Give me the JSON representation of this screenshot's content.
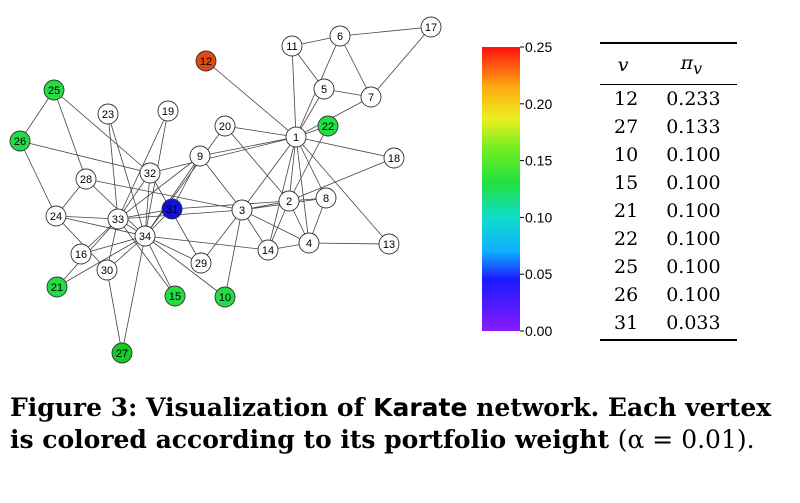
{
  "chart_data": {
    "type": "network",
    "nodes": [
      {
        "id": "1",
        "color": "#ffffff"
      },
      {
        "id": "2",
        "color": "#ffffff"
      },
      {
        "id": "3",
        "color": "#ffffff"
      },
      {
        "id": "4",
        "color": "#ffffff"
      },
      {
        "id": "5",
        "color": "#ffffff"
      },
      {
        "id": "6",
        "color": "#ffffff"
      },
      {
        "id": "7",
        "color": "#ffffff"
      },
      {
        "id": "8",
        "color": "#ffffff"
      },
      {
        "id": "9",
        "color": "#ffffff"
      },
      {
        "id": "10",
        "color": "#22dd44"
      },
      {
        "id": "11",
        "color": "#ffffff"
      },
      {
        "id": "12",
        "color": "#e04a10"
      },
      {
        "id": "13",
        "color": "#ffffff"
      },
      {
        "id": "14",
        "color": "#ffffff"
      },
      {
        "id": "15",
        "color": "#22dd44"
      },
      {
        "id": "16",
        "color": "#ffffff"
      },
      {
        "id": "17",
        "color": "#ffffff"
      },
      {
        "id": "18",
        "color": "#ffffff"
      },
      {
        "id": "19",
        "color": "#ffffff"
      },
      {
        "id": "20",
        "color": "#ffffff"
      },
      {
        "id": "21",
        "color": "#22dd44"
      },
      {
        "id": "22",
        "color": "#22dd44"
      },
      {
        "id": "23",
        "color": "#ffffff"
      },
      {
        "id": "24",
        "color": "#ffffff"
      },
      {
        "id": "25",
        "color": "#22dd44"
      },
      {
        "id": "26",
        "color": "#22dd44"
      },
      {
        "id": "27",
        "color": "#11cc22"
      },
      {
        "id": "28",
        "color": "#ffffff"
      },
      {
        "id": "29",
        "color": "#ffffff"
      },
      {
        "id": "30",
        "color": "#ffffff"
      },
      {
        "id": "31",
        "color": "#1010dd"
      },
      {
        "id": "32",
        "color": "#ffffff"
      },
      {
        "id": "33",
        "color": "#ffffff"
      },
      {
        "id": "34",
        "color": "#ffffff"
      }
    ],
    "edges": [
      [
        "1",
        "2"
      ],
      [
        "1",
        "3"
      ],
      [
        "1",
        "4"
      ],
      [
        "1",
        "5"
      ],
      [
        "1",
        "6"
      ],
      [
        "1",
        "7"
      ],
      [
        "1",
        "8"
      ],
      [
        "1",
        "9"
      ],
      [
        "1",
        "11"
      ],
      [
        "1",
        "12"
      ],
      [
        "1",
        "13"
      ],
      [
        "1",
        "14"
      ],
      [
        "1",
        "18"
      ],
      [
        "1",
        "20"
      ],
      [
        "1",
        "22"
      ],
      [
        "1",
        "32"
      ],
      [
        "2",
        "3"
      ],
      [
        "2",
        "4"
      ],
      [
        "2",
        "8"
      ],
      [
        "2",
        "14"
      ],
      [
        "2",
        "18"
      ],
      [
        "2",
        "20"
      ],
      [
        "2",
        "22"
      ],
      [
        "2",
        "31"
      ],
      [
        "3",
        "4"
      ],
      [
        "3",
        "8"
      ],
      [
        "3",
        "9"
      ],
      [
        "3",
        "10"
      ],
      [
        "3",
        "14"
      ],
      [
        "3",
        "28"
      ],
      [
        "3",
        "29"
      ],
      [
        "3",
        "33"
      ],
      [
        "4",
        "8"
      ],
      [
        "4",
        "13"
      ],
      [
        "4",
        "14"
      ],
      [
        "5",
        "7"
      ],
      [
        "5",
        "11"
      ],
      [
        "6",
        "7"
      ],
      [
        "6",
        "11"
      ],
      [
        "6",
        "17"
      ],
      [
        "7",
        "17"
      ],
      [
        "9",
        "31"
      ],
      [
        "9",
        "33"
      ],
      [
        "9",
        "34"
      ],
      [
        "10",
        "34"
      ],
      [
        "14",
        "34"
      ],
      [
        "15",
        "33"
      ],
      [
        "15",
        "34"
      ],
      [
        "16",
        "33"
      ],
      [
        "16",
        "34"
      ],
      [
        "19",
        "33"
      ],
      [
        "19",
        "34"
      ],
      [
        "20",
        "34"
      ],
      [
        "21",
        "33"
      ],
      [
        "21",
        "34"
      ],
      [
        "23",
        "33"
      ],
      [
        "23",
        "34"
      ],
      [
        "24",
        "26"
      ],
      [
        "24",
        "28"
      ],
      [
        "24",
        "30"
      ],
      [
        "24",
        "33"
      ],
      [
        "24",
        "34"
      ],
      [
        "25",
        "26"
      ],
      [
        "25",
        "28"
      ],
      [
        "25",
        "32"
      ],
      [
        "26",
        "32"
      ],
      [
        "27",
        "30"
      ],
      [
        "27",
        "34"
      ],
      [
        "28",
        "34"
      ],
      [
        "29",
        "32"
      ],
      [
        "29",
        "34"
      ],
      [
        "30",
        "33"
      ],
      [
        "30",
        "34"
      ],
      [
        "31",
        "33"
      ],
      [
        "31",
        "34"
      ],
      [
        "32",
        "33"
      ],
      [
        "32",
        "34"
      ],
      [
        "33",
        "34"
      ]
    ],
    "colorbar": {
      "min": 0.0,
      "max": 0.25,
      "ticks": [
        "0.00",
        "0.05",
        "0.10",
        "0.15",
        "0.20",
        "0.25"
      ]
    }
  },
  "table": {
    "headers": {
      "v": "v",
      "pi": "π",
      "pi_sub": "v"
    },
    "rows": [
      {
        "v": "12",
        "pi": "0.233"
      },
      {
        "v": "27",
        "pi": "0.133"
      },
      {
        "v": "10",
        "pi": "0.100"
      },
      {
        "v": "15",
        "pi": "0.100"
      },
      {
        "v": "21",
        "pi": "0.100"
      },
      {
        "v": "22",
        "pi": "0.100"
      },
      {
        "v": "25",
        "pi": "0.100"
      },
      {
        "v": "26",
        "pi": "0.100"
      },
      {
        "v": "31",
        "pi": "0.033"
      }
    ]
  },
  "caption": {
    "label": "Figure 3:",
    "part1": "Visualization of",
    "dataset": "Karate",
    "part2": "network.  Each vertex is colored according to its portfolio weight",
    "part3": "(α = 0.01)."
  }
}
